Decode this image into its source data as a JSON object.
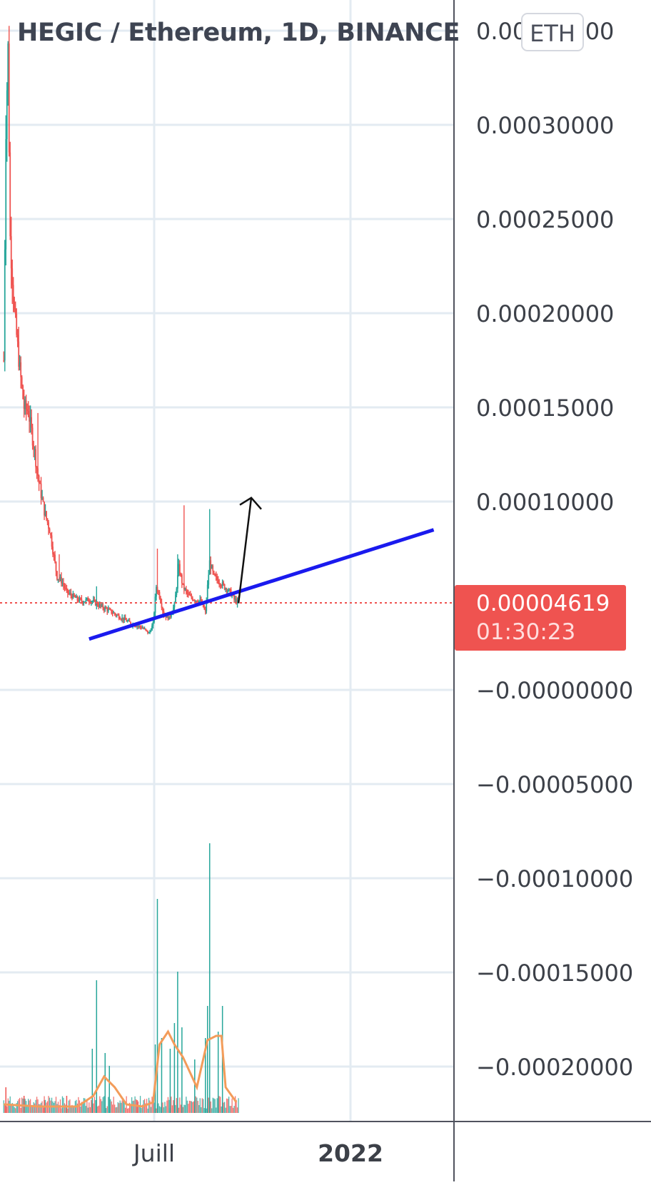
{
  "chart_data": {
    "type": "candlestick",
    "title": "HEGIC / Ethereum, 1D, BINANCE",
    "symbol": "HEGIC / Ethereum",
    "interval": "1D",
    "exchange": "BINANCE",
    "quote_currency": "ETH",
    "y_ticks": [
      0.00035,
      0.0003,
      0.00025,
      0.0002,
      0.00015,
      0.0001,
      0.0,
      -5e-05,
      -0.0001,
      -0.00015,
      -0.0002
    ],
    "y_tick_labels": [
      "0.00035000",
      "0.00030000",
      "0.00025000",
      "0.00020000",
      "0.00015000",
      "0.00010000",
      "−0.00000000",
      "−0.00005000",
      "−0.00010000",
      "−0.00015000",
      "−0.00020000"
    ],
    "x_tick_labels": [
      {
        "label": "Juill",
        "date": "2021-07-01",
        "bold": false
      },
      {
        "label": "2022",
        "date": "2022-01-01",
        "bold": true
      }
    ],
    "x_range": [
      "2021-02-10",
      "2022-03-20"
    ],
    "grid": true,
    "last_price": 4.619e-05,
    "last_price_label": "0.00004619",
    "countdown": "01:30:23",
    "colors": {
      "up": "#26a69a",
      "down": "#ef5350",
      "trendline": "#1a1aee",
      "arrow": "#111111",
      "volume_ma": "#f39c5a",
      "grid": "#e3ebf2"
    },
    "price_path": [
      [
        "2021-02-10",
        0.000175
      ],
      [
        "2021-02-12",
        0.0003
      ],
      [
        "2021-02-14",
        0.00034
      ],
      [
        "2021-02-16",
        0.00024
      ],
      [
        "2021-02-20",
        0.0002
      ],
      [
        "2021-02-25",
        0.00017
      ],
      [
        "2021-03-01",
        0.00015
      ],
      [
        "2021-03-05",
        0.000148
      ],
      [
        "2021-03-10",
        0.00013
      ],
      [
        "2021-03-15",
        0.00011
      ],
      [
        "2021-03-20",
        9.5e-05
      ],
      [
        "2021-03-25",
        8.5e-05
      ],
      [
        "2021-04-01",
        6e-05
      ],
      [
        "2021-04-05",
        5.8e-05
      ],
      [
        "2021-04-10",
        5.2e-05
      ],
      [
        "2021-04-15",
        5e-05
      ],
      [
        "2021-04-20",
        4.8e-05
      ],
      [
        "2021-04-25",
        4.7e-05
      ],
      [
        "2021-05-01",
        4.8e-05
      ],
      [
        "2021-05-10",
        4.5e-05
      ],
      [
        "2021-05-20",
        4.2e-05
      ],
      [
        "2021-06-01",
        3.8e-05
      ],
      [
        "2021-06-10",
        3.5e-05
      ],
      [
        "2021-06-20",
        3.3e-05
      ],
      [
        "2021-06-26",
        3e-05
      ],
      [
        "2021-06-30",
        3.5e-05
      ],
      [
        "2021-07-03",
        5.5e-05
      ],
      [
        "2021-07-06",
        5e-05
      ],
      [
        "2021-07-10",
        4e-05
      ],
      [
        "2021-07-15",
        3.8e-05
      ],
      [
        "2021-07-20",
        4.5e-05
      ],
      [
        "2021-07-24",
        6.5e-05
      ],
      [
        "2021-07-28",
        5.5e-05
      ],
      [
        "2021-08-02",
        5e-05
      ],
      [
        "2021-08-08",
        4.8e-05
      ],
      [
        "2021-08-14",
        4.7e-05
      ],
      [
        "2021-08-18",
        4.1e-05
      ],
      [
        "2021-08-20",
        5.5e-05
      ],
      [
        "2021-08-22",
        6.8e-05
      ],
      [
        "2021-08-26",
        6e-05
      ],
      [
        "2021-09-01",
        5.7e-05
      ],
      [
        "2021-09-06",
        5.4e-05
      ],
      [
        "2021-09-10",
        5.2e-05
      ],
      [
        "2021-09-14",
        4.8e-05
      ],
      [
        "2021-09-18",
        4.6e-05
      ]
    ],
    "spikes": [
      [
        "2021-03-14",
        0.000147
      ],
      [
        "2021-04-03",
        7.2e-05
      ],
      [
        "2021-05-08",
        5.5e-05
      ],
      [
        "2021-07-04",
        7.5e-05
      ],
      [
        "2021-07-23",
        7.2e-05
      ],
      [
        "2021-07-29",
        9.8e-05
      ],
      [
        "2021-08-22",
        9.6e-05
      ]
    ],
    "volume": {
      "label": "Volume",
      "bars": [
        [
          "2021-02-12",
          0.12
        ],
        [
          "2021-03-01",
          0.08
        ],
        [
          "2021-03-20",
          0.06
        ],
        [
          "2021-04-10",
          0.08
        ],
        [
          "2021-05-04",
          0.3
        ],
        [
          "2021-05-08",
          0.62
        ],
        [
          "2021-05-16",
          0.28
        ],
        [
          "2021-05-20",
          0.22
        ],
        [
          "2021-06-15",
          0.06
        ],
        [
          "2021-07-02",
          0.32
        ],
        [
          "2021-07-04",
          1.0
        ],
        [
          "2021-07-08",
          0.35
        ],
        [
          "2021-07-16",
          0.3
        ],
        [
          "2021-07-20",
          0.42
        ],
        [
          "2021-07-23",
          0.66
        ],
        [
          "2021-07-27",
          0.4
        ],
        [
          "2021-08-08",
          0.25
        ],
        [
          "2021-08-18",
          0.35
        ],
        [
          "2021-08-20",
          0.5
        ],
        [
          "2021-08-22",
          1.26
        ],
        [
          "2021-08-30",
          0.38
        ],
        [
          "2021-09-03",
          0.5
        ]
      ],
      "moving_average": [
        [
          "2021-02-10",
          0.04
        ],
        [
          "2021-03-15",
          0.03
        ],
        [
          "2021-04-20",
          0.03
        ],
        [
          "2021-05-05",
          0.08
        ],
        [
          "2021-05-15",
          0.17
        ],
        [
          "2021-05-25",
          0.12
        ],
        [
          "2021-06-05",
          0.04
        ],
        [
          "2021-06-20",
          0.03
        ],
        [
          "2021-06-30",
          0.05
        ],
        [
          "2021-07-06",
          0.32
        ],
        [
          "2021-07-14",
          0.38
        ],
        [
          "2021-07-20",
          0.32
        ],
        [
          "2021-07-28",
          0.26
        ],
        [
          "2021-08-10",
          0.12
        ],
        [
          "2021-08-20",
          0.34
        ],
        [
          "2021-08-28",
          0.36
        ],
        [
          "2021-09-02",
          0.36
        ],
        [
          "2021-09-06",
          0.12
        ],
        [
          "2021-09-16",
          0.05
        ]
      ]
    },
    "drawings": {
      "trendline": {
        "from": [
          "2021-05-01",
          2.7e-05
        ],
        "to": [
          "2022-03-20",
          8.5e-05
        ]
      },
      "arrow": {
        "from": [
          "2021-09-18",
          4.6e-05
        ],
        "to": [
          "2021-09-30",
          0.000102
        ]
      }
    }
  }
}
